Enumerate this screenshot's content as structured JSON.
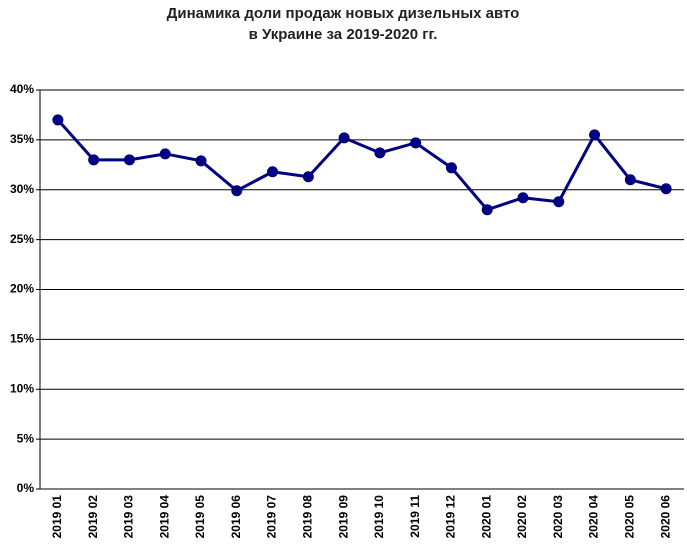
{
  "chart_data": {
    "type": "line",
    "title": [
      "Динамика доли продаж новых дизельных авто",
      "в Украине за 2019-2020 гг."
    ],
    "categories": [
      "2019 01",
      "2019 02",
      "2019 03",
      "2019 04",
      "2019 05",
      "2019 06",
      "2019 07",
      "2019 08",
      "2019 09",
      "2019 10",
      "2019 11",
      "2019 12",
      "2020 01",
      "2020 02",
      "2020 03",
      "2020 04",
      "2020 05",
      "2020 06"
    ],
    "series": [
      {
        "color": "#000080",
        "values": [
          37.0,
          33.0,
          33.0,
          33.6,
          32.9,
          29.9,
          31.8,
          31.3,
          35.2,
          33.7,
          34.7,
          32.2,
          28.0,
          29.2,
          28.8,
          35.5,
          31.0,
          30.1
        ]
      }
    ],
    "ylim": [
      0,
      40
    ],
    "yticks": [
      {
        "value": 0,
        "label": "0%"
      },
      {
        "value": 5,
        "label": "5%"
      },
      {
        "value": 10,
        "label": "10%"
      },
      {
        "value": 15,
        "label": "15%"
      },
      {
        "value": 20,
        "label": "20%"
      },
      {
        "value": 25,
        "label": "25%"
      },
      {
        "value": 30,
        "label": "30%"
      },
      {
        "value": 35,
        "label": "35%"
      },
      {
        "value": 40,
        "label": "40%"
      }
    ],
    "grid": true
  }
}
